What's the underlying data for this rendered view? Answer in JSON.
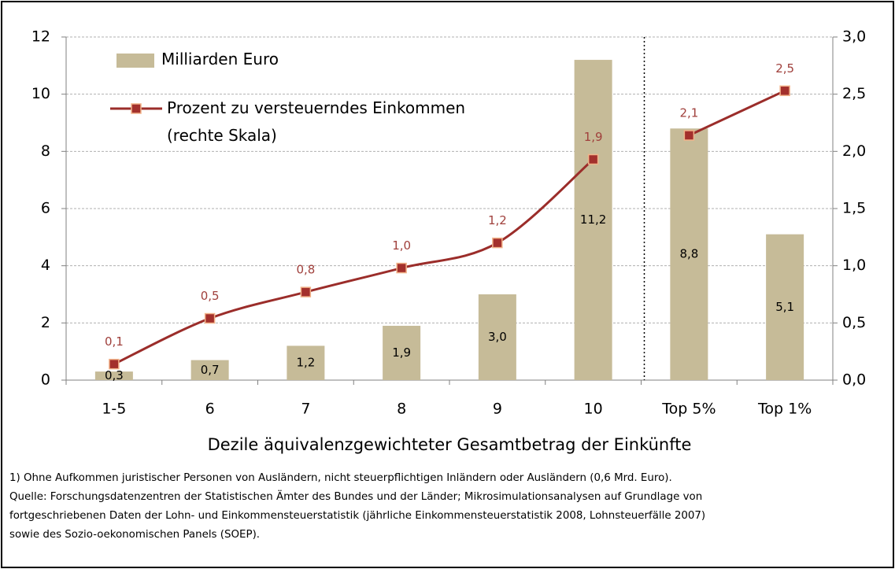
{
  "chart_data": {
    "type": "bar_line",
    "categories": [
      "1-5",
      "6",
      "7",
      "8",
      "9",
      "10",
      "Top 5%",
      "Top 1%"
    ],
    "series": [
      {
        "name": "Milliarden Euro",
        "type": "bar",
        "color": "#c6bb98",
        "values": [
          0.3,
          0.7,
          1.2,
          1.9,
          3.0,
          11.2,
          8.8,
          5.1
        ],
        "value_labels": [
          "0,3",
          "0,7",
          "1,2",
          "1,9",
          "3,0",
          "11,2",
          "8,8",
          "5,1"
        ]
      },
      {
        "name": "Prozent zu versteuerndes Einkommen (rechte Skala)",
        "type": "line",
        "axis": "y2",
        "color": "#9b2d2a",
        "marker_color": "#a3302c",
        "marker_edge": "#f2b38a",
        "label_color": "#a0403c",
        "values": [
          0.14,
          0.54,
          0.77,
          0.98,
          1.2,
          1.93,
          2.14,
          2.53
        ],
        "value_labels": [
          "0,1",
          "0,5",
          "0,8",
          "1,0",
          "1,2",
          "1,9",
          "2,1",
          "2,5"
        ]
      }
    ],
    "xlabel": "Dezile äquivalenzgewichteter Gesamtbetrag der Einkünfte",
    "ylim": [
      0,
      12
    ],
    "yticks": [
      0,
      2,
      4,
      6,
      8,
      10,
      12
    ],
    "y2lim": [
      0,
      3
    ],
    "y2ticks": [
      {
        "value": 0,
        "label": "0,0"
      },
      {
        "value": 0.5,
        "label": "0,5"
      },
      {
        "value": 1,
        "label": "1,0"
      },
      {
        "value": 1.5,
        "label": "1,5"
      },
      {
        "value": 2,
        "label": "2,0"
      },
      {
        "value": 2.5,
        "label": "2,5"
      },
      {
        "value": 3,
        "label": "3,0"
      }
    ],
    "grid": true,
    "separator_index": 6,
    "legend": "upper left",
    "notes": [
      "1) Ohne Aufkommen juristischer Personen von Ausländern, nicht steuerpflichtigen Inländern oder Ausländern (0,6 Mrd. Euro).",
      "Quelle: Forschungsdatenzentren der Statistischen Ämter des Bundes und der Länder; Mikrosimulationsanalysen auf Grundlage von",
      "fortgeschriebenen Daten der Lohn- und Einkommensteuerstatistik (jährliche Einkommensteuerstatistik 2008, Lohnsteuerfälle 2007)",
      "sowie des Sozio-oekonomischen Panels (SOEP)."
    ]
  }
}
